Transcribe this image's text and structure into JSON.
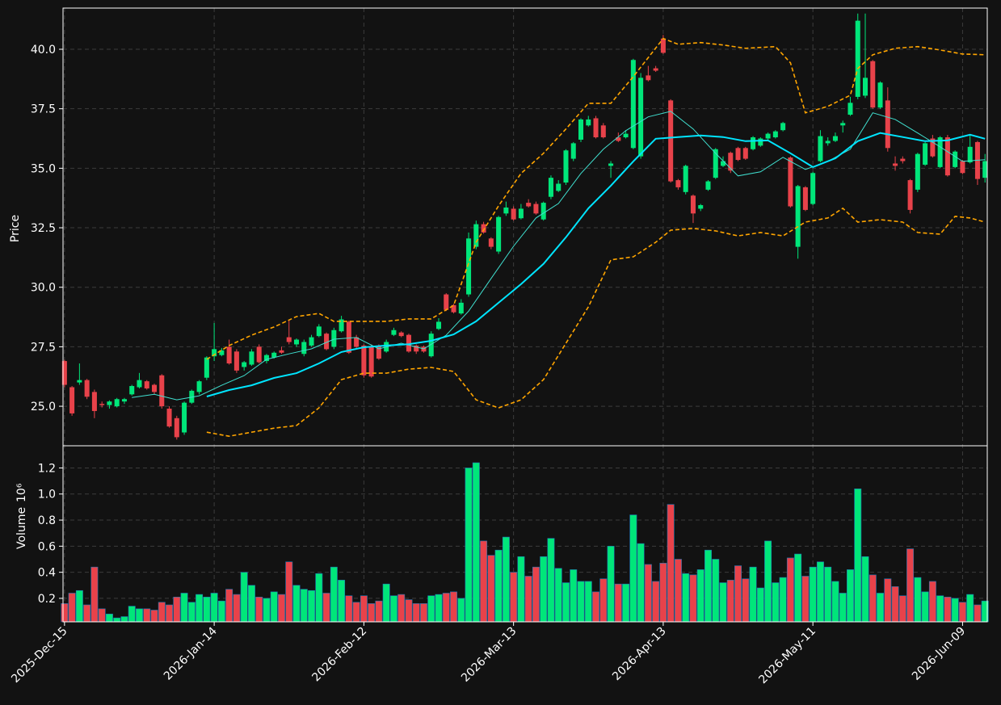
{
  "chart_data": {
    "type": "candlestick",
    "ylabel": "Price",
    "up_color": "#00e67a",
    "down_color": "#e8424a",
    "grid": true,
    "xlim": [
      -0.2,
      123.3
    ],
    "xticks": [
      {
        "value": 0,
        "label": "2025-Dec-15"
      },
      {
        "value": 20,
        "label": "2026-Jan-14"
      },
      {
        "value": 40,
        "label": "2026-Feb-12"
      },
      {
        "value": 60,
        "label": "2026-Mar-13"
      },
      {
        "value": 80,
        "label": "2026-Apr-13"
      },
      {
        "value": 100,
        "label": "2026-May-11"
      },
      {
        "value": 120,
        "label": "2026-Jun-09"
      }
    ],
    "ylim": [
      23.34,
      41.73
    ],
    "yticks": [
      {
        "value": 25,
        "label": "25.0"
      },
      {
        "value": 27.5,
        "label": "27.5"
      },
      {
        "value": 30,
        "label": "30.0"
      },
      {
        "value": 32.5,
        "label": "32.5"
      },
      {
        "value": 35,
        "label": "35.0"
      },
      {
        "value": 37.5,
        "label": "37.5"
      },
      {
        "value": 40,
        "label": "40.0"
      }
    ],
    "candles": {
      "open": [
        26.9,
        25.8,
        26.0,
        26.1,
        25.6,
        25.1,
        25.05,
        25.0,
        25.2,
        25.5,
        25.8,
        26.05,
        25.9,
        26.3,
        24.9,
        24.5,
        23.9,
        25.15,
        25.6,
        26.2,
        27.1,
        27.15,
        27.5,
        27.3,
        26.65,
        26.75,
        27.5,
        26.9,
        27.05,
        27.35,
        27.9,
        27.6,
        27.2,
        27.55,
        27.95,
        28.05,
        27.5,
        28.15,
        28.55,
        27.9,
        27.55,
        27.5,
        27.55,
        27.3,
        28.0,
        28.1,
        28.0,
        27.55,
        27.5,
        27.1,
        28.25,
        29.7,
        29.25,
        28.9,
        29.7,
        31.7,
        32.65,
        32.05,
        31.5,
        33.1,
        33.3,
        32.9,
        33.55,
        33.5,
        32.85,
        33.8,
        34.05,
        34.4,
        35.4,
        36.2,
        36.8,
        37.1,
        36.8,
        35.1,
        36.3,
        36.3,
        35.85,
        35.5,
        38.9,
        39.2,
        40.45,
        37.85,
        34.5,
        34.0,
        33.85,
        33.3,
        34.1,
        34.6,
        35.1,
        35.65,
        35.85,
        35.85,
        35.8,
        35.95,
        36.25,
        36.3,
        36.6,
        35.45,
        31.7,
        34.2,
        33.5,
        35.3,
        36.05,
        36.15,
        36.8,
        37.25,
        38.0,
        38.05,
        39.5,
        37.55,
        37.85,
        35.2,
        35.4,
        34.5,
        34.1,
        35.15,
        36.25,
        35.05,
        36.3,
        35.05,
        35.3,
        35.25,
        36.1,
        34.6
      ],
      "high": [
        26.95,
        25.85,
        26.8,
        26.15,
        25.7,
        25.2,
        25.25,
        25.35,
        25.35,
        25.9,
        26.4,
        26.1,
        25.95,
        26.35,
        25.0,
        24.6,
        25.2,
        25.7,
        26.1,
        27.1,
        28.5,
        27.45,
        27.8,
        27.4,
        26.9,
        27.4,
        27.6,
        27.2,
        27.3,
        27.5,
        28.6,
        27.85,
        27.8,
        28.0,
        28.45,
        28.1,
        28.3,
        28.8,
        28.6,
        28.0,
        27.6,
        27.6,
        27.6,
        27.8,
        28.3,
        28.15,
        28.05,
        27.6,
        27.55,
        28.15,
        28.7,
        29.75,
        29.3,
        29.5,
        32.3,
        32.8,
        32.75,
        32.1,
        33.0,
        33.6,
        33.4,
        33.5,
        33.7,
        33.6,
        33.6,
        34.7,
        34.5,
        35.8,
        36.1,
        37.1,
        37.2,
        37.2,
        36.9,
        35.3,
        36.5,
        36.6,
        39.6,
        39.0,
        39.3,
        39.3,
        40.6,
        37.9,
        34.55,
        35.15,
        33.9,
        33.5,
        34.5,
        35.85,
        35.5,
        35.7,
        35.9,
        35.9,
        36.35,
        36.3,
        36.5,
        36.6,
        36.95,
        35.5,
        34.3,
        34.25,
        34.85,
        36.6,
        36.3,
        36.5,
        37.0,
        38.0,
        41.5,
        41.5,
        39.55,
        38.65,
        38.4,
        35.5,
        35.5,
        34.55,
        35.65,
        36.1,
        36.4,
        36.35,
        36.4,
        35.75,
        35.35,
        36.4,
        36.15,
        35.6
      ],
      "low": [
        25.8,
        24.6,
        25.9,
        25.3,
        24.5,
        24.95,
        24.9,
        24.95,
        25.1,
        25.45,
        25.75,
        25.7,
        25.5,
        24.9,
        24.1,
        23.6,
        23.8,
        25.1,
        25.5,
        26.1,
        26.9,
        27.1,
        26.75,
        26.4,
        26.5,
        26.7,
        26.8,
        26.8,
        27.0,
        27.2,
        27.6,
        27.5,
        27.1,
        27.5,
        27.9,
        27.35,
        27.4,
        28.1,
        27.2,
        27.45,
        26.2,
        26.2,
        26.95,
        27.25,
        27.95,
        27.9,
        27.25,
        27.2,
        27.25,
        27.05,
        28.2,
        29.0,
        28.9,
        28.85,
        29.6,
        31.6,
        32.25,
        31.6,
        31.4,
        33.0,
        32.8,
        32.85,
        33.35,
        33.05,
        32.8,
        33.7,
        34.0,
        34.3,
        35.3,
        36.1,
        36.75,
        36.25,
        36.25,
        34.6,
        36.1,
        36.25,
        35.8,
        35.4,
        38.65,
        39.05,
        39.8,
        34.4,
        34.1,
        33.9,
        32.7,
        33.2,
        34.05,
        34.55,
        35.05,
        34.8,
        35.3,
        35.35,
        35.75,
        35.9,
        36.2,
        36.25,
        36.55,
        33.35,
        31.2,
        33.2,
        33.45,
        35.25,
        35.95,
        36.1,
        36.5,
        37.2,
        37.9,
        37.95,
        37.5,
        37.5,
        35.7,
        34.9,
        35.2,
        33.1,
        34.0,
        35.1,
        35.45,
        35.0,
        34.65,
        35.0,
        34.75,
        35.2,
        34.3,
        34.4
      ],
      "close": [
        25.9,
        24.7,
        26.1,
        25.4,
        24.8,
        25.05,
        25.2,
        25.3,
        25.3,
        25.85,
        26.1,
        25.75,
        25.6,
        25.0,
        24.15,
        23.7,
        25.15,
        25.65,
        26.05,
        27.05,
        27.4,
        27.35,
        26.8,
        26.5,
        26.85,
        27.3,
        26.85,
        27.15,
        27.25,
        27.25,
        27.7,
        27.8,
        27.7,
        27.9,
        28.35,
        27.4,
        28.2,
        28.65,
        27.25,
        27.5,
        26.3,
        26.25,
        27.0,
        27.7,
        28.2,
        27.95,
        27.3,
        27.3,
        27.3,
        28.05,
        28.55,
        29.05,
        28.95,
        29.35,
        32.05,
        32.65,
        32.3,
        31.7,
        32.95,
        33.35,
        32.85,
        33.3,
        33.4,
        33.1,
        33.55,
        34.6,
        34.35,
        35.75,
        36.05,
        37.05,
        37.05,
        36.3,
        36.3,
        35.2,
        36.15,
        36.45,
        39.55,
        38.8,
        38.7,
        39.1,
        39.85,
        34.45,
        34.2,
        35.1,
        33.1,
        33.45,
        34.45,
        35.8,
        35.3,
        34.9,
        35.35,
        35.4,
        36.3,
        36.25,
        36.45,
        36.55,
        36.9,
        33.4,
        34.25,
        33.25,
        34.8,
        36.35,
        36.15,
        36.35,
        36.9,
        37.75,
        41.2,
        38.8,
        37.55,
        38.6,
        35.85,
        35.1,
        35.3,
        33.25,
        35.6,
        36.05,
        35.5,
        36.3,
        34.7,
        35.7,
        34.8,
        35.9,
        34.55,
        35.3
      ]
    },
    "lines": [
      {
        "color": "#ffa500",
        "width": 1.6,
        "dashed": true,
        "x": [
          19,
          22,
          25,
          28,
          31,
          34,
          36,
          40,
          43,
          46,
          49,
          52,
          55,
          58,
          61,
          64,
          67,
          70,
          73,
          76,
          80,
          82,
          85,
          88,
          91,
          95,
          97,
          99,
          102,
          105,
          106,
          108,
          111,
          114,
          117,
          120,
          123
        ],
        "values": [
          26.97,
          27.55,
          27.99,
          28.33,
          28.77,
          28.9,
          28.57,
          28.57,
          28.57,
          28.67,
          28.67,
          29.24,
          31.89,
          33.42,
          34.78,
          35.63,
          36.65,
          37.73,
          37.73,
          38.85,
          40.45,
          40.21,
          40.28,
          40.18,
          40.04,
          40.11,
          39.43,
          37.33,
          37.6,
          38.07,
          39.19,
          39.77,
          40.04,
          40.11,
          39.97,
          39.8,
          39.77
        ]
      },
      {
        "color": "#ffa500",
        "width": 1.6,
        "dashed": true,
        "x": [
          19,
          22,
          25,
          28,
          31,
          34,
          37,
          40,
          43,
          46,
          49,
          52,
          55,
          58,
          61,
          64,
          67,
          70,
          73,
          76,
          79,
          81,
          84,
          87,
          90,
          93,
          96,
          99,
          102,
          104,
          106,
          109,
          112,
          114,
          117,
          119,
          121,
          123
        ],
        "values": [
          23.91,
          23.74,
          23.91,
          24.08,
          24.19,
          24.93,
          26.12,
          26.39,
          26.39,
          26.56,
          26.63,
          26.46,
          25.27,
          24.93,
          25.27,
          26.12,
          27.65,
          29.18,
          31.15,
          31.28,
          31.89,
          32.4,
          32.47,
          32.37,
          32.16,
          32.3,
          32.16,
          32.74,
          32.91,
          33.32,
          32.74,
          32.84,
          32.74,
          32.3,
          32.23,
          32.98,
          32.91,
          32.74
        ]
      },
      {
        "color": "#40e0d0",
        "width": 1,
        "dashed": false,
        "x": [
          9,
          12,
          15,
          18,
          21,
          24,
          27,
          30,
          33,
          36,
          39,
          42,
          45,
          48,
          51,
          54,
          57,
          60,
          63,
          66,
          69,
          72,
          75,
          78,
          81,
          84,
          87,
          90,
          93,
          96,
          99,
          102,
          105,
          108,
          111,
          114,
          117,
          120,
          123
        ],
        "values": [
          25.37,
          25.5,
          25.27,
          25.44,
          25.88,
          26.29,
          26.97,
          27.2,
          27.41,
          27.82,
          27.89,
          27.41,
          27.65,
          27.41,
          27.99,
          29.0,
          30.37,
          31.72,
          32.91,
          33.52,
          34.78,
          35.8,
          36.58,
          37.16,
          37.39,
          36.65,
          35.63,
          34.68,
          34.85,
          35.46,
          34.95,
          35.29,
          35.8,
          37.33,
          37.05,
          36.48,
          35.9,
          35.29,
          35.36
        ]
      },
      {
        "color": "#00e5ff",
        "width": 2,
        "dashed": false,
        "x": [
          19,
          22,
          25,
          28,
          31,
          34,
          37,
          40,
          43,
          46,
          49,
          52,
          55,
          58,
          61,
          64,
          67,
          70,
          73,
          76,
          79,
          82,
          85,
          88,
          91,
          94,
          97,
          100,
          103,
          106,
          109,
          112,
          115,
          118,
          121,
          123
        ],
        "values": [
          25.41,
          25.68,
          25.88,
          26.19,
          26.39,
          26.8,
          27.28,
          27.48,
          27.55,
          27.61,
          27.75,
          28.02,
          28.57,
          29.35,
          30.13,
          30.98,
          32.1,
          33.32,
          34.27,
          35.29,
          36.24,
          36.31,
          36.38,
          36.31,
          36.14,
          36.17,
          35.63,
          35.05,
          35.42,
          36.14,
          36.48,
          36.31,
          36.14,
          36.17,
          36.41,
          36.24
        ]
      }
    ],
    "volume": {
      "ylabel": "Volume",
      "scale_label": "10⁶",
      "ylim": [
        0.02,
        1.37
      ],
      "yticks": [
        0.2,
        0.4,
        0.6,
        0.8,
        {
          "value": 1.0,
          "label": "1.0"
        },
        1.2
      ],
      "values": [
        0.16,
        0.24,
        0.26,
        0.15,
        0.44,
        0.12,
        0.08,
        0.05,
        0.06,
        0.14,
        0.12,
        0.12,
        0.11,
        0.17,
        0.15,
        0.21,
        0.24,
        0.17,
        0.23,
        0.21,
        0.24,
        0.18,
        0.27,
        0.23,
        0.4,
        0.3,
        0.21,
        0.2,
        0.25,
        0.23,
        0.48,
        0.3,
        0.27,
        0.26,
        0.39,
        0.24,
        0.44,
        0.34,
        0.22,
        0.17,
        0.22,
        0.16,
        0.18,
        0.31,
        0.22,
        0.23,
        0.19,
        0.16,
        0.16,
        0.22,
        0.23,
        0.24,
        0.25,
        0.2,
        1.2,
        1.24,
        0.64,
        0.53,
        0.57,
        0.67,
        0.4,
        0.52,
        0.37,
        0.44,
        0.52,
        0.66,
        0.43,
        0.32,
        0.42,
        0.33,
        0.33,
        0.25,
        0.35,
        0.6,
        0.31,
        0.31,
        0.84,
        0.62,
        0.46,
        0.33,
        0.47,
        0.92,
        0.5,
        0.39,
        0.38,
        0.42,
        0.57,
        0.5,
        0.32,
        0.34,
        0.45,
        0.35,
        0.44,
        0.28,
        0.64,
        0.32,
        0.36,
        0.51,
        0.54,
        0.37,
        0.44,
        0.48,
        0.44,
        0.33,
        0.24,
        0.42,
        1.04,
        0.52,
        0.38,
        0.24,
        0.35,
        0.29,
        0.22,
        0.58,
        0.36,
        0.25,
        0.33,
        0.22,
        0.21,
        0.2,
        0.17,
        0.23,
        0.15,
        0.18
      ]
    }
  }
}
